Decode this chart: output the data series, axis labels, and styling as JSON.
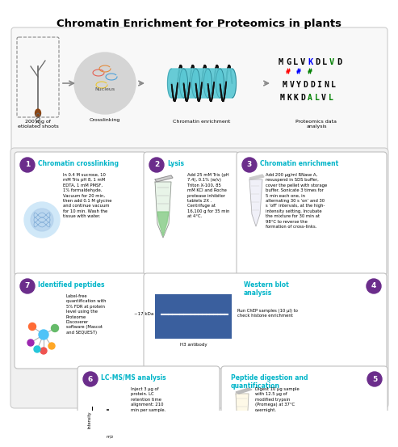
{
  "title": "Chromatin Enrichment for Proteomics in plants",
  "title_fontsize": 9.5,
  "teal_color": "#00b4c8",
  "purple_color": "#6b2d8b",
  "step1_title": "Chromatin crosslinking",
  "step1_text": "In 0.4 M sucrose, 10\nmM Tris pH 8, 1 mM\nEDTA, 1 mM PMSF,\n1% formaldehyde.\nVacuum for 20 min,\nthen add 0.1 M glycine\nand continue vacuum\nfor 10 min. Wash the\ntissue with water.",
  "step2_title": "Lysis",
  "step2_text": "Add 25 mM Tris (pH\n7.4), 0.1% (w/v)\nTriton X-100, 85\nmM KCl and Roche\nprotease inhibitor\ntablets 2X .\nCentrifuge at\n16,100 g for 35 min\nat 4°C.",
  "step3_title": "Chromatin enrichment",
  "step3_text": "Add 200 μg/ml RNase A,\nresuspend in SDS buffer,\ncover the pellet with storage\nbuffer. Sonicate 3 times for\n5 min each one, in\nalternating 30 s ‘on’ and 30\ns ‘off’ intervals, at the high-\nintensity setting. Incubate\nthe mixture for 30 min at\n98°C to reverse the\nformation of cross-links.",
  "step4_title": "Western blot\nanalysis",
  "step4_text": "Run ChEP samples (10 μl) to\ncheck histone enrichment",
  "step5_title": "Peptide digestion and\nquantification",
  "step5_text": "Digest 10 μg sample\nwith 12.5 μg of\nmodified trypsin\n(Promega) at 37°C\novernight.",
  "step6_title": "LC-MS/MS analysis",
  "step6_text": "Inject 3 μg of\nprotein. LC\nretention time\nalignment: 210\nmin per sample.",
  "step7_title": "Identified peptides",
  "step7_text": "Label-free\nquantification with\n5% FDR at protein\nlevel using the\nProteome\nDiscoverer\nsoftware (Mascot\nand SEQUEST)",
  "top_label0": "200 mg of\netiolated shoots",
  "top_label1": "Crosslinking",
  "top_label2": "Chromatin enrichment",
  "top_label3": "Proteomics data\nanalysis",
  "seq1": "MGLVKDLVD",
  "seq1_colors": [
    "#000000",
    "#000000",
    "#000000",
    "#000000",
    "#0000ff",
    "#000000",
    "#000000",
    "#008000",
    "#000000"
  ],
  "seq2": "MVYDDINL",
  "seq3": "MKKDALVL",
  "western_label": "~17 kDa",
  "h3_label": "H3 antibody",
  "gel_color": "#3a5f9e",
  "outer_bg": "#ffffff",
  "panel_bg": "#f5f5f5",
  "box_bg": "#ffffff",
  "box_edge": "#c0c0c0"
}
